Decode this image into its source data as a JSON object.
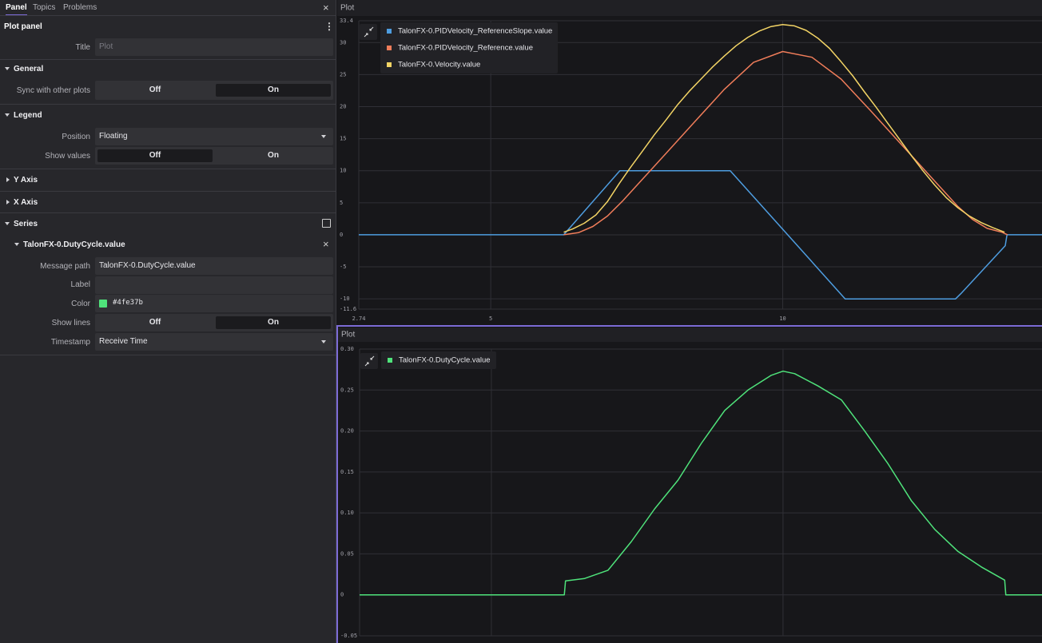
{
  "panel": {
    "tabs": [
      "Panel",
      "Topics",
      "Problems"
    ],
    "title": "Plot panel",
    "title_label": "Title",
    "title_placeholder": "Plot",
    "general": {
      "heading": "General",
      "sync_label": "Sync with other plots",
      "off": "Off",
      "on": "On"
    },
    "legend": {
      "heading": "Legend",
      "position_label": "Position",
      "position": "Floating",
      "show_values_label": "Show values",
      "off": "Off",
      "on": "On"
    },
    "y_axis": "Y Axis",
    "x_axis": "X Axis",
    "series": {
      "heading": "Series",
      "item": "TalonFX-0.DutyCycle.value",
      "message_path_label": "Message path",
      "message_path": "TalonFX-0.DutyCycle.value",
      "label_label": "Label",
      "color_label": "Color",
      "color": "#4fe37b",
      "show_lines_label": "Show lines",
      "off": "Off",
      "on": "On",
      "timestamp_label": "Timestamp",
      "timestamp": "Receive Time"
    }
  },
  "chart_data": [
    {
      "type": "line",
      "title": "Plot",
      "xlim": [
        2.74,
        14.44
      ],
      "xticks": [
        2.74,
        5,
        10
      ],
      "ylim": [
        -11.6,
        33.4
      ],
      "yticks": [
        -11.6,
        -10,
        -5,
        0,
        5,
        10,
        15,
        20,
        25,
        30,
        33.4
      ],
      "grid": true,
      "series": [
        {
          "name": "TalonFX-0.PIDVelocity_ReferenceSlope.value",
          "color": "#4e9de0",
          "x": [
            2.74,
            6.25,
            7.21,
            9.1,
            11.07,
            12.96,
            13.05,
            13.81,
            13.84,
            14.44
          ],
          "values": [
            0,
            0,
            10,
            10,
            -10,
            -10,
            -9.2,
            -1.7,
            0,
            0
          ]
        },
        {
          "name": "TalonFX-0.PIDVelocity_Reference.value",
          "color": "#f07d5a",
          "x": [
            6.25,
            6.5,
            6.75,
            7.0,
            7.25,
            7.5,
            8.0,
            8.5,
            9.0,
            9.5,
            10.0,
            10.5,
            11.0,
            11.5,
            12.0,
            12.5,
            13.0,
            13.25,
            13.5,
            13.75,
            13.85
          ],
          "values": [
            0,
            0.33,
            1.3,
            2.93,
            5.2,
            7.7,
            12.7,
            17.7,
            22.7,
            26.9,
            28.6,
            27.7,
            24.3,
            19.4,
            14.4,
            9.4,
            4.4,
            2.4,
            1.0,
            0.4,
            0
          ]
        },
        {
          "name": "TalonFX-0.Velocity.value",
          "color": "#f3d465",
          "x": [
            6.25,
            6.4,
            6.6,
            6.8,
            7.0,
            7.2,
            7.4,
            7.6,
            7.8,
            8.0,
            8.2,
            8.4,
            8.6,
            8.8,
            9.0,
            9.2,
            9.4,
            9.6,
            9.8,
            10.0,
            10.2,
            10.4,
            10.6,
            10.8,
            11.0,
            11.2,
            11.4,
            11.6,
            11.8,
            12.0,
            12.2,
            12.4,
            12.6,
            12.8,
            13.0,
            13.2,
            13.4,
            13.6,
            13.8
          ],
          "values": [
            0.4,
            0.9,
            1.8,
            3.1,
            5.2,
            8.0,
            10.6,
            13.1,
            15.6,
            17.9,
            20.3,
            22.4,
            24.3,
            26.2,
            27.9,
            29.5,
            30.8,
            31.8,
            32.5,
            32.8,
            32.6,
            31.9,
            30.7,
            29.1,
            27.0,
            24.8,
            22.3,
            19.9,
            17.4,
            14.9,
            12.4,
            10.0,
            7.8,
            5.8,
            4.2,
            2.9,
            1.9,
            1.1,
            0.4
          ]
        }
      ]
    },
    {
      "type": "line",
      "title": "Plot",
      "xlim": [
        2.74,
        14.44
      ],
      "ylim": [
        -0.05,
        0.3
      ],
      "yticks": [
        -0.05,
        0,
        0.05,
        {
          "value": 0.1,
          "label": "0.10"
        },
        0.15,
        {
          "value": 0.2,
          "label": "0.20"
        },
        0.25,
        {
          "value": 0.3,
          "label": "0.30"
        }
      ],
      "grid": true,
      "series": [
        {
          "name": "TalonFX-0.DutyCycle.value",
          "color": "#4fe37b",
          "x": [
            2.74,
            6.25,
            6.27,
            6.6,
            7.0,
            7.4,
            7.8,
            8.2,
            8.6,
            9.0,
            9.4,
            9.8,
            10.0,
            10.2,
            10.6,
            11.0,
            11.4,
            11.8,
            12.2,
            12.6,
            13.0,
            13.4,
            13.8,
            13.82,
            14.44
          ],
          "values": [
            0,
            0,
            0.017,
            0.02,
            0.03,
            0.065,
            0.105,
            0.14,
            0.185,
            0.225,
            0.25,
            0.268,
            0.273,
            0.27,
            0.255,
            0.238,
            0.2,
            0.16,
            0.115,
            0.08,
            0.053,
            0.034,
            0.018,
            0,
            0
          ]
        }
      ]
    }
  ]
}
